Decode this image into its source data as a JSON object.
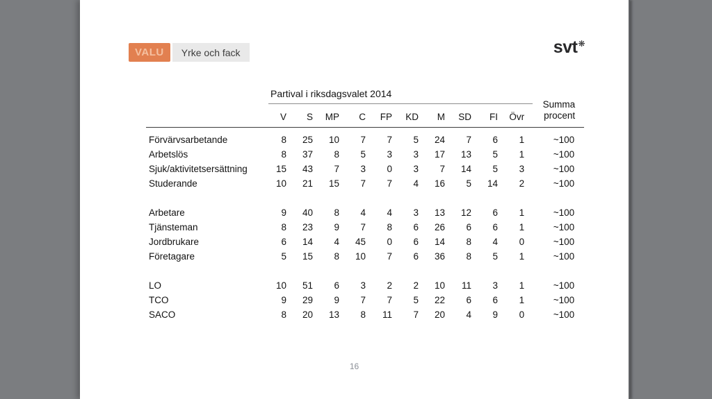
{
  "window": {
    "outer_background": "#7b7d80",
    "slide_background": "#ffffff"
  },
  "toolbar": {
    "badge_label": "VALU",
    "tab_label": "Yrke och fack"
  },
  "logo": {
    "text": "svt",
    "flower_icon": "❋"
  },
  "colors": {
    "badge_bg": "#e28050",
    "badge_text": "#f5c0a0",
    "tab_bg": "#e9e9e9",
    "rule_dark": "#3a3a3a",
    "rule_light": "#8c8c8c"
  },
  "table": {
    "title": "Partival i riksdagsvalet 2014",
    "summa_header_line1": "Summa",
    "summa_header_line2": "procent",
    "columns": [
      "V",
      "S",
      "MP",
      "C",
      "FP",
      "KD",
      "M",
      "SD",
      "FI",
      "Övr"
    ],
    "groups": [
      {
        "rows": [
          {
            "label": "Förvärvsarbetande",
            "values": [
              8,
              25,
              10,
              7,
              7,
              5,
              24,
              7,
              6,
              1
            ],
            "summa": "~100"
          },
          {
            "label": "Arbetslös",
            "values": [
              8,
              37,
              8,
              5,
              3,
              3,
              17,
              13,
              5,
              1
            ],
            "summa": "~100"
          },
          {
            "label": "Sjuk/aktivitetsersättning",
            "values": [
              15,
              43,
              7,
              3,
              0,
              3,
              7,
              14,
              5,
              3
            ],
            "summa": "~100"
          },
          {
            "label": "Studerande",
            "values": [
              10,
              21,
              15,
              7,
              7,
              4,
              16,
              5,
              14,
              2
            ],
            "summa": "~100"
          }
        ]
      },
      {
        "rows": [
          {
            "label": "Arbetare",
            "values": [
              9,
              40,
              8,
              4,
              4,
              3,
              13,
              12,
              6,
              1
            ],
            "summa": "~100"
          },
          {
            "label": "Tjänsteman",
            "values": [
              8,
              23,
              9,
              7,
              8,
              6,
              26,
              6,
              6,
              1
            ],
            "summa": "~100"
          },
          {
            "label": "Jordbrukare",
            "values": [
              6,
              14,
              4,
              45,
              0,
              6,
              14,
              8,
              4,
              0
            ],
            "summa": "~100"
          },
          {
            "label": "Företagare",
            "values": [
              5,
              15,
              8,
              10,
              7,
              6,
              36,
              8,
              5,
              1
            ],
            "summa": "~100"
          }
        ]
      },
      {
        "rows": [
          {
            "label": "LO",
            "values": [
              10,
              51,
              6,
              3,
              2,
              2,
              10,
              11,
              3,
              1
            ],
            "summa": "~100"
          },
          {
            "label": "TCO",
            "values": [
              9,
              29,
              9,
              7,
              7,
              5,
              22,
              6,
              6,
              1
            ],
            "summa": "~100"
          },
          {
            "label": "SACO",
            "values": [
              8,
              20,
              13,
              8,
              11,
              7,
              20,
              4,
              9,
              0
            ],
            "summa": "~100"
          }
        ]
      }
    ]
  },
  "footer": {
    "page_number": "16"
  }
}
